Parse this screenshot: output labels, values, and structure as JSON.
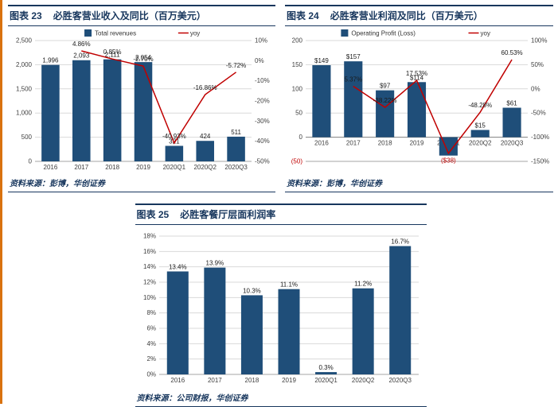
{
  "colors": {
    "navy": "#17365D",
    "bar": "#1F4E79",
    "red": "#C00000",
    "grid": "#D9D9D9",
    "stripe": "#D9720F"
  },
  "chart_data": [
    {
      "fig_label": "图表 23",
      "title": "必胜客营业收入及同比（百万美元）",
      "source": "资料来源：彭博，华创证券",
      "type": "bar+line",
      "legend": true,
      "categories": [
        "2016",
        "2017",
        "2018",
        "2019",
        "2020Q1",
        "2020Q2",
        "2020Q3"
      ],
      "series": [
        {
          "name": "Total revenues",
          "type": "bar",
          "axis": "left",
          "values": [
            1996,
            2093,
            2111,
            2054,
            321,
            424,
            511
          ],
          "labels": [
            "1,996",
            "2,093",
            "2,111",
            "2,054",
            "321",
            "424",
            "511"
          ]
        },
        {
          "name": "yoy",
          "type": "line",
          "axis": "right",
          "values": [
            null,
            4.86,
            0.85,
            -2.7,
            -40.93,
            -16.86,
            -5.72
          ],
          "labels": [
            null,
            "4.86%",
            "0.85%",
            "-2.70%",
            "-40.93%",
            "-16.86%",
            "-5.72%"
          ]
        }
      ],
      "left_axis": {
        "min": 0,
        "max": 2500,
        "values": [
          0,
          500,
          1000,
          1500,
          2000,
          2500
        ],
        "labels": [
          "0",
          "500",
          "1,000",
          "1,500",
          "2,000",
          "2,500"
        ]
      },
      "right_axis": {
        "min": -50,
        "max": 10,
        "values": [
          -50,
          -40,
          -30,
          -20,
          -10,
          0,
          10
        ],
        "labels": [
          "-50%",
          "-40%",
          "-30%",
          "-20%",
          "-10%",
          "0%",
          "10%"
        ]
      }
    },
    {
      "fig_label": "图表 24",
      "title": "必胜客营业利润及同比（百万美元）",
      "source": "资料来源：彭博，华创证券",
      "type": "bar+line",
      "legend": true,
      "categories": [
        "2016",
        "2017",
        "2018",
        "2019",
        "2020Q1",
        "2020Q2",
        "2020Q3"
      ],
      "series": [
        {
          "name": "Operating Profit (Loss)",
          "type": "bar",
          "axis": "left",
          "values": [
            149,
            157,
            97,
            114,
            -38,
            15,
            61
          ],
          "labels": [
            "$149",
            "$157",
            "$97",
            "$114",
            "($38)",
            "$15",
            "$61"
          ]
        },
        {
          "name": "yoy",
          "type": "line",
          "axis": "right",
          "values": [
            null,
            5.37,
            -38.22,
            17.53,
            -133.33,
            -48.28,
            60.53
          ],
          "labels": [
            null,
            "5.37%",
            "-38.22%",
            "17.53%",
            null,
            "-48.28%",
            "60.53%"
          ]
        }
      ],
      "left_axis": {
        "min": -50,
        "max": 200,
        "values": [
          -50,
          0,
          50,
          100,
          150,
          200
        ],
        "labels": [
          "(50)",
          "0",
          "50",
          "100",
          "150",
          "200"
        ]
      },
      "right_axis": {
        "min": -150,
        "max": 100,
        "values": [
          -150,
          -100,
          -50,
          0,
          50,
          100
        ],
        "labels": [
          "-150%",
          "-100%",
          "-50%",
          "0%",
          "50%",
          "100%"
        ]
      }
    },
    {
      "fig_label": "图表 25",
      "title": "必胜客餐厅层面利润率",
      "source": "资料来源：公司财报，华创证券",
      "type": "bar",
      "legend": false,
      "categories": [
        "2016",
        "2017",
        "2018",
        "2019",
        "2020Q1",
        "2020Q2",
        "2020Q3"
      ],
      "series": [
        {
          "name": "餐厅层面利润率",
          "type": "bar",
          "axis": "left",
          "values": [
            13.4,
            13.9,
            10.3,
            11.1,
            0.3,
            11.2,
            16.7
          ],
          "labels": [
            "13.4%",
            "13.9%",
            "10.3%",
            "11.1%",
            "0.3%",
            "11.2%",
            "16.7%"
          ]
        }
      ],
      "left_axis": {
        "min": 0,
        "max": 18,
        "values": [
          0,
          2,
          4,
          6,
          8,
          10,
          12,
          14,
          16,
          18
        ],
        "labels": [
          "0%",
          "2%",
          "4%",
          "6%",
          "8%",
          "10%",
          "12%",
          "14%",
          "16%",
          "18%"
        ]
      }
    }
  ]
}
